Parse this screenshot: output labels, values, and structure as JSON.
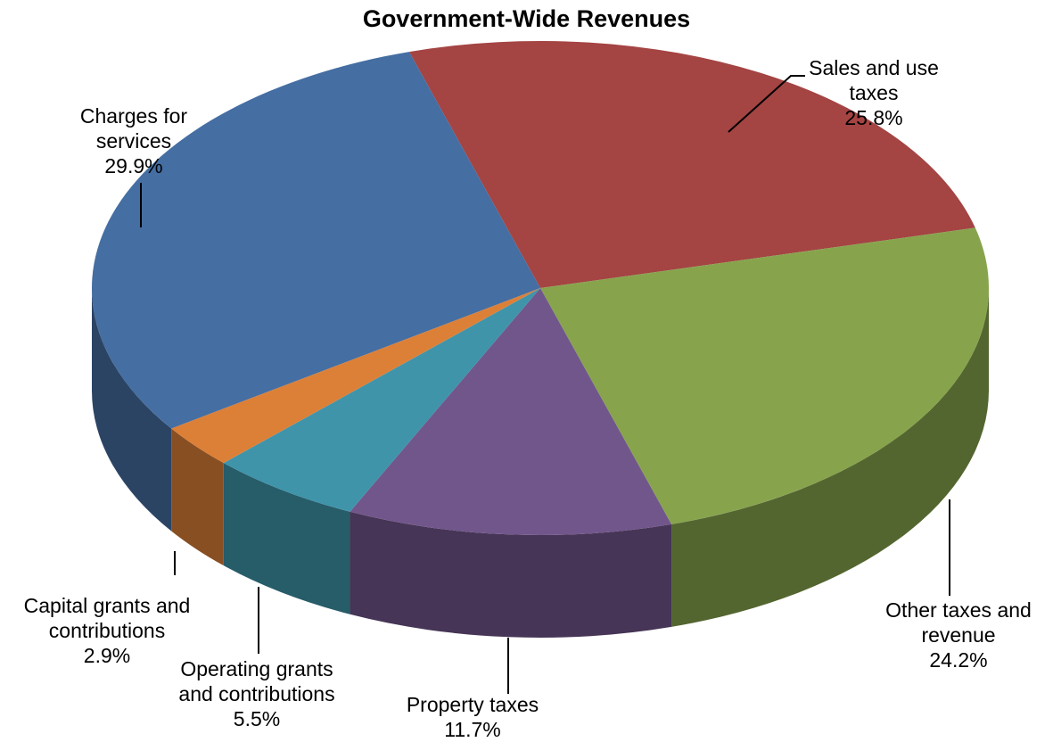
{
  "chart_data": {
    "type": "pie",
    "title": "Government-Wide Revenues",
    "slices": [
      {
        "label_lines": [
          "Sales and use",
          "taxes"
        ],
        "value": 25.8,
        "pct": "25.8%",
        "color": "#a44443"
      },
      {
        "label_lines": [
          "Other taxes and",
          "revenue"
        ],
        "value": 24.2,
        "pct": "24.2%",
        "color": "#87a44d"
      },
      {
        "label_lines": [
          "Property taxes"
        ],
        "value": 11.7,
        "pct": "11.7%",
        "color": "#71568b"
      },
      {
        "label_lines": [
          "Operating grants",
          "and contributions"
        ],
        "value": 5.5,
        "pct": "5.5%",
        "color": "#3f94aa"
      },
      {
        "label_lines": [
          "Capital grants and",
          "contributions"
        ],
        "value": 2.9,
        "pct": "2.9%",
        "color": "#dc8038"
      },
      {
        "label_lines": [
          "Charges for",
          "services"
        ],
        "value": 29.9,
        "pct": "29.9%",
        "color": "#456ea2"
      }
    ]
  }
}
